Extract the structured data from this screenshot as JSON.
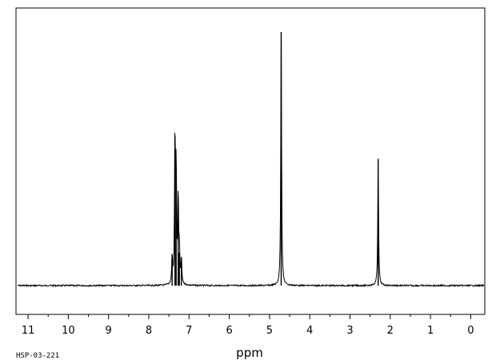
{
  "chart_data": {
    "type": "line",
    "sample_id": "HSP-03-221",
    "xlabel": "ppm",
    "ylabel": "",
    "x_reversed": true,
    "xlim": [
      11.3,
      -0.35
    ],
    "ylim": [
      0,
      1.0
    ],
    "x_major_ticks": [
      11,
      10,
      9,
      8,
      7,
      6,
      5,
      4,
      3,
      2,
      1,
      0
    ],
    "x_tick_labels": [
      "11",
      "10",
      "9",
      "8",
      "7",
      "6",
      "5",
      "4",
      "3",
      "2",
      "1",
      "0"
    ],
    "x_minor_step": 0.5,
    "grid": false,
    "legend": "none",
    "line_color": "#000000",
    "baseline": 0.0,
    "peaks": [
      {
        "ppm": 7.42,
        "height": 0.11
      },
      {
        "ppm": 7.35,
        "height": 0.59
      },
      {
        "ppm": 7.32,
        "height": 0.46
      },
      {
        "ppm": 7.27,
        "height": 0.35
      },
      {
        "ppm": 7.24,
        "height": 0.13
      },
      {
        "ppm": 7.19,
        "height": 0.1
      },
      {
        "ppm": 4.71,
        "height": 1.0
      },
      {
        "ppm": 2.3,
        "height": 0.5
      }
    ]
  }
}
